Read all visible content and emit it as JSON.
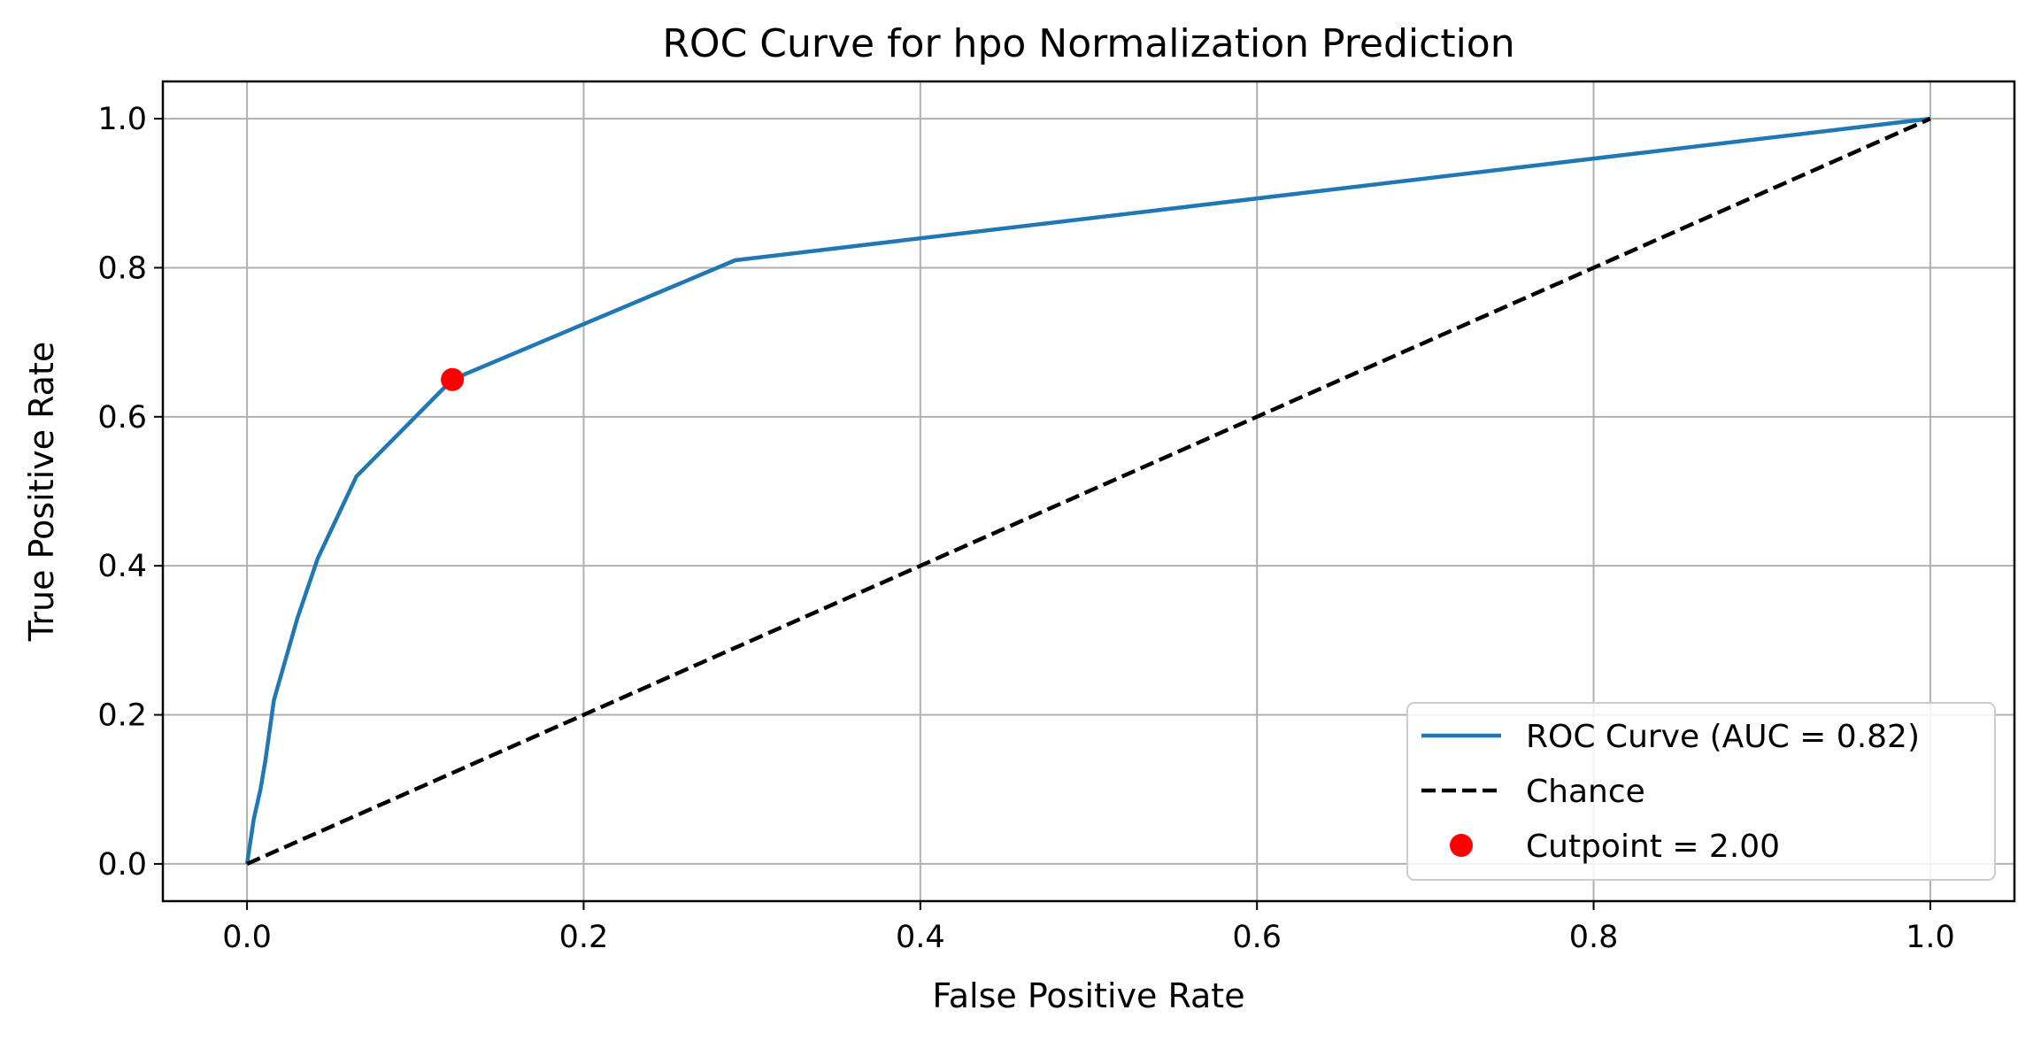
{
  "chart_data": {
    "type": "line",
    "title": "ROC Curve for hpo Normalization Prediction",
    "xlabel": "False Positive Rate",
    "ylabel": "True Positive Rate",
    "xlim": [
      -0.05,
      1.05
    ],
    "ylim": [
      -0.05,
      1.05
    ],
    "xticks": [
      0.0,
      0.2,
      0.4,
      0.6,
      0.8,
      1.0
    ],
    "yticks": [
      0.0,
      0.2,
      0.4,
      0.6,
      0.8,
      1.0
    ],
    "xtick_labels": [
      "0.0",
      "0.2",
      "0.4",
      "0.6",
      "0.8",
      "1.0"
    ],
    "ytick_labels": [
      "0.0",
      "0.2",
      "0.4",
      "0.6",
      "0.8",
      "1.0"
    ],
    "grid": true,
    "legend_position": "bottom-right",
    "series": [
      {
        "name": "ROC Curve (AUC = 0.82)",
        "style": "solid",
        "color": "#1f77b4",
        "points": [
          [
            0.0,
            0.0
          ],
          [
            0.004,
            0.06
          ],
          [
            0.008,
            0.1
          ],
          [
            0.011,
            0.14
          ],
          [
            0.016,
            0.22
          ],
          [
            0.03,
            0.33
          ],
          [
            0.042,
            0.41
          ],
          [
            0.065,
            0.52
          ],
          [
            0.122,
            0.65
          ],
          [
            0.29,
            0.81
          ],
          [
            1.0,
            1.0
          ]
        ]
      },
      {
        "name": "Chance",
        "style": "dashed",
        "color": "#000000",
        "points": [
          [
            0.0,
            0.0
          ],
          [
            1.0,
            1.0
          ]
        ]
      }
    ],
    "markers": [
      {
        "name": "Cutpoint = 2.00",
        "color": "#ff0000",
        "x": 0.122,
        "y": 0.65
      }
    ]
  }
}
